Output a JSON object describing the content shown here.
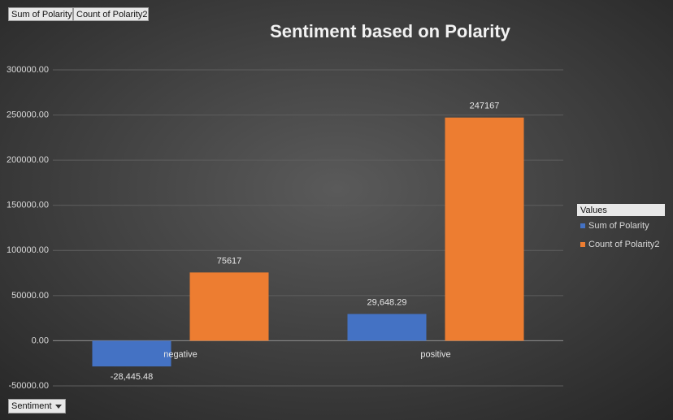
{
  "chart_data": {
    "type": "bar",
    "title": "Sentiment based on Polarity",
    "categories": [
      "negative",
      "positive"
    ],
    "series": [
      {
        "name": "Sum of Polarity",
        "color": "#4472c4",
        "values": [
          -28445.48,
          29648.29
        ],
        "value_labels": [
          "-28,445.48",
          "29,648.29"
        ]
      },
      {
        "name": "Count of Polarity2",
        "color": "#ed7d31",
        "values": [
          75617,
          247167
        ]
      }
    ],
    "ylim": [
      -50000,
      300000
    ],
    "yticks": [
      {
        "value": -50000,
        "label": "-50000.00"
      },
      {
        "value": 0,
        "label": "0.00"
      },
      {
        "value": 50000,
        "label": "50000.00"
      },
      {
        "value": 100000,
        "label": "100000.00"
      },
      {
        "value": 150000,
        "label": "150000.00"
      },
      {
        "value": 200000,
        "label": "200000.00"
      },
      {
        "value": 250000,
        "label": "250000.00"
      },
      {
        "value": 300000,
        "label": "300000.00"
      }
    ],
    "grid": true,
    "legend_title": "Values",
    "legend_position": "right",
    "axis_field": "Sentiment"
  }
}
